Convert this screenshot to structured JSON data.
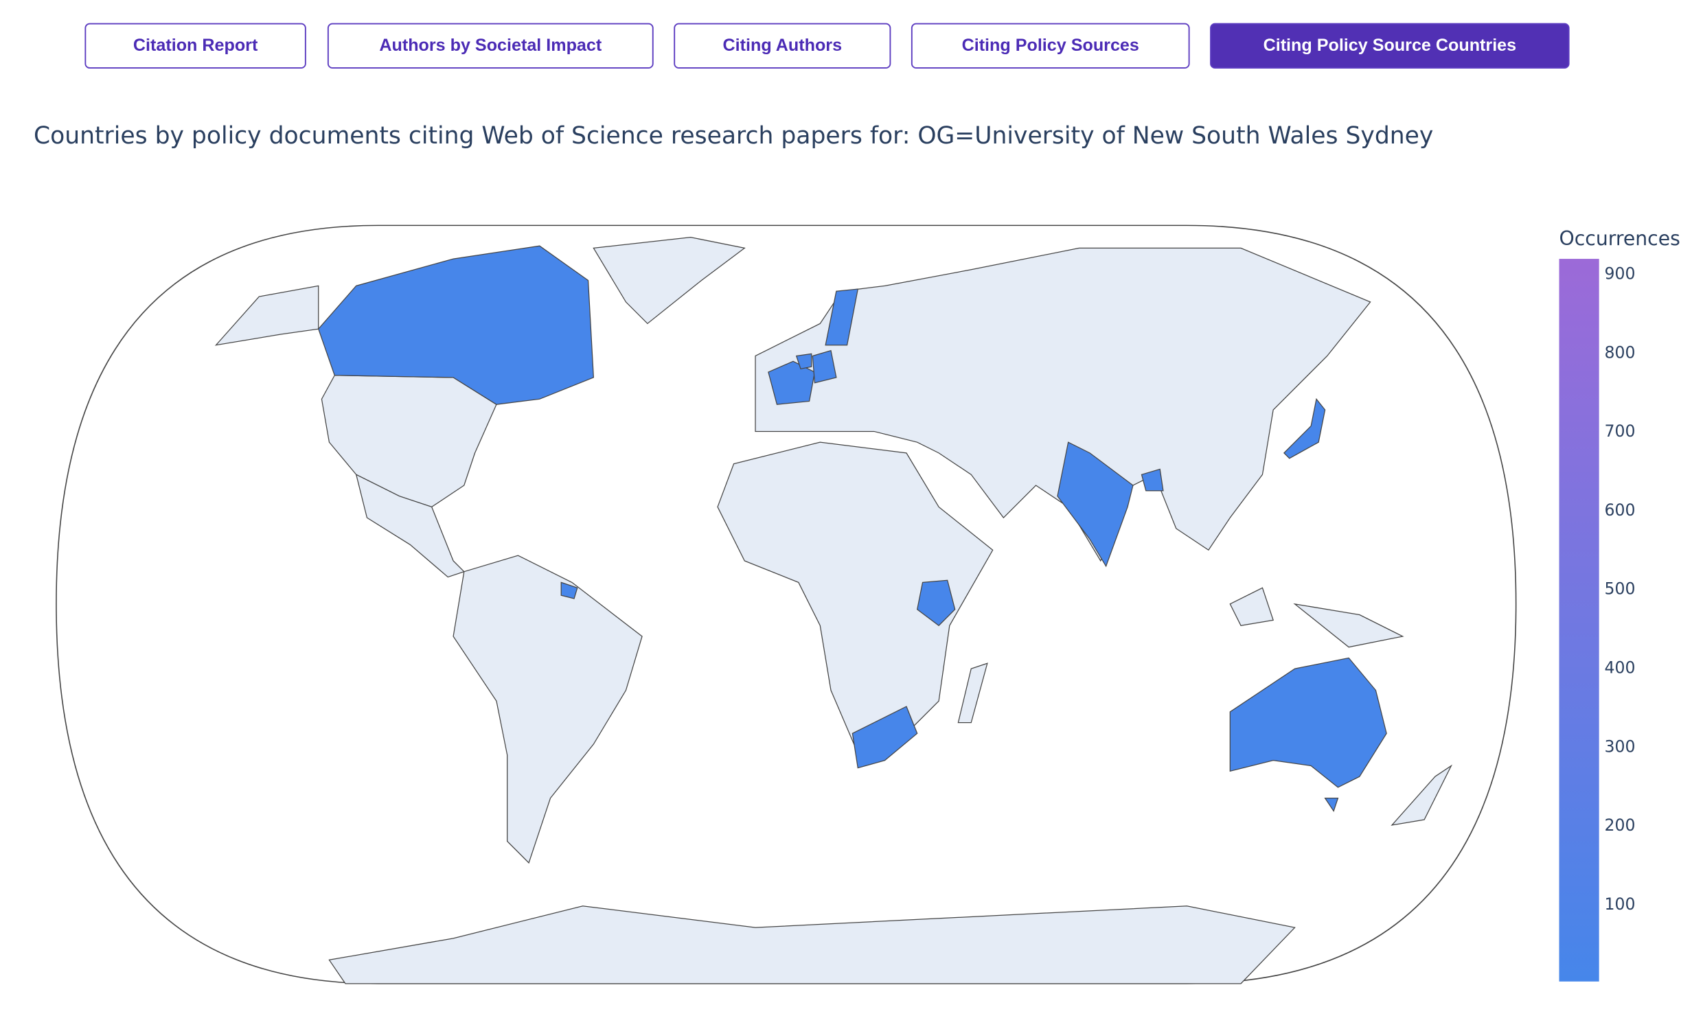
{
  "buttons": [
    {
      "label": "Citation Report"
    },
    {
      "label": "Authors by Societal Impact"
    },
    {
      "label": "Citing Authors"
    },
    {
      "label": "Citing Policy Sources"
    },
    {
      "label": "Citing Policy Source Countries"
    }
  ],
  "active_button": 4,
  "chart_data": {
    "type": "choropleth",
    "title": "Countries by policy documents citing Web of Science research papers for: OG=University of New South Wales Sydney",
    "colorbar_title": "Occurrences",
    "values": [
      10,
      10,
      10,
      10,
      10,
      10,
      10,
      10,
      10,
      10,
      10,
      10
    ],
    "zlim": [
      3,
      920
    ],
    "zticks": [
      100,
      200,
      300,
      400,
      500,
      600,
      700,
      800,
      900
    ],
    "colorscale": [
      "#4686ea",
      "#9c6ad8"
    ],
    "land_color": "#e5ecf6"
  }
}
